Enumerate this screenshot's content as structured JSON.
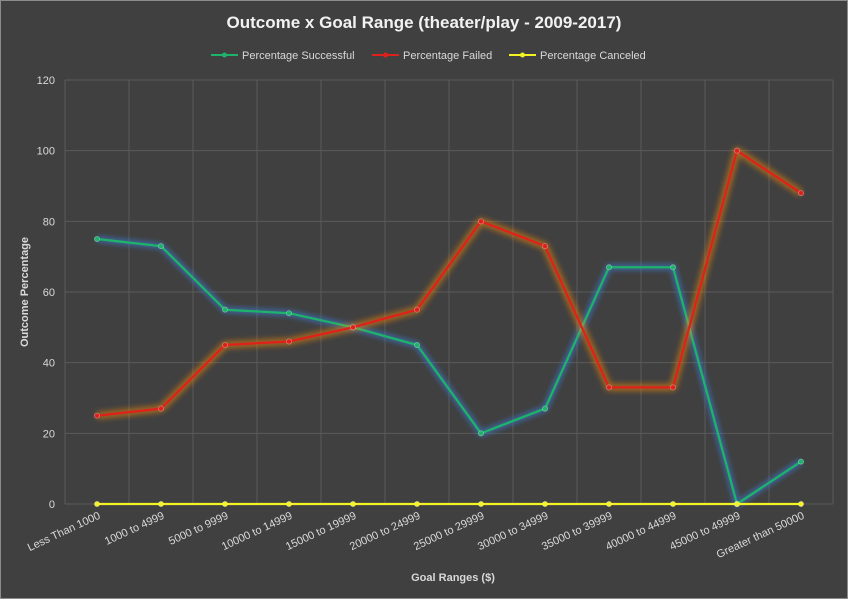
{
  "chart_data": {
    "type": "line",
    "title": "Outcome x Goal Range (theater/play - 2009-2017)",
    "xlabel": "Goal Ranges ($)",
    "ylabel": "Outcome  Percentage",
    "ylim": [
      0,
      120
    ],
    "yticks": [
      0,
      20,
      40,
      60,
      80,
      100,
      120
    ],
    "grid": true,
    "legend_position": "top",
    "categories": [
      "Less Than 1000",
      "1000 to 4999",
      "5000 to 9999",
      "10000 to 14999",
      "15000 to 19999",
      "20000 to 24999",
      "25000 to 29999",
      "30000 to 34999",
      "35000 to 39999",
      "40000 to 44999",
      "45000 to 49999",
      "Greater than 50000"
    ],
    "series": [
      {
        "name": "Percentage Successful",
        "color": "#1db36b",
        "glow": "#3a7bd5",
        "values": [
          75,
          73,
          55,
          54,
          50,
          45,
          20,
          27,
          67,
          67,
          0,
          12
        ]
      },
      {
        "name": "Percentage Failed",
        "color": "#e0201b",
        "glow": "#ff8a00",
        "values": [
          25,
          27,
          45,
          46,
          50,
          55,
          80,
          73,
          33,
          33,
          100,
          88
        ]
      },
      {
        "name": "Percentage Canceled",
        "color": "#f2f224",
        "glow": "#c8c814",
        "values": [
          0,
          0,
          0,
          0,
          0,
          0,
          0,
          0,
          0,
          0,
          0,
          0
        ]
      }
    ]
  }
}
